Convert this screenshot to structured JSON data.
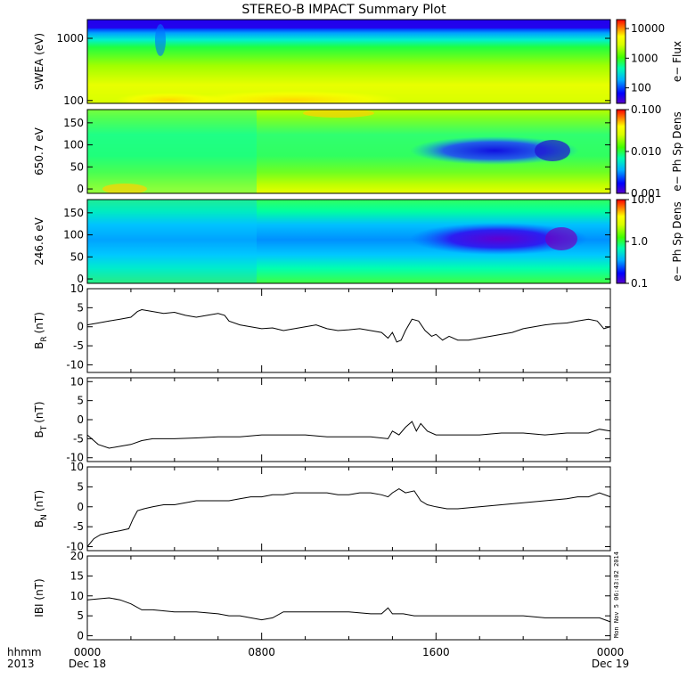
{
  "title": "STEREO-B IMPACT Summary Plot",
  "time_axis": {
    "row_label_1": "hhmm",
    "row_label_2": "2013",
    "ticks": [
      {
        "hours": 0,
        "label": "0000",
        "date": "Dec 18"
      },
      {
        "hours": 8,
        "label": "0800",
        "date": ""
      },
      {
        "hours": 16,
        "label": "1600",
        "date": ""
      },
      {
        "hours": 24,
        "label": "0000",
        "date": "Dec 19"
      }
    ]
  },
  "timestamp_text": "Mon Nov  5 06:43:02 2014",
  "chart_data": [
    {
      "type": "heatmap",
      "ylabel": "SWEA (eV)",
      "yscale": "log",
      "ylim": [
        90,
        2000
      ],
      "yticks": [
        {
          "v": 1000,
          "label": "1000"
        },
        {
          "v": 100,
          "label": "100"
        }
      ],
      "colorbar": {
        "scale": "log",
        "range": [
          30,
          20000
        ],
        "label": "e− Flux",
        "ticks": [
          {
            "v": 10000,
            "label": "10000"
          },
          {
            "v": 1000,
            "label": "1000"
          },
          {
            "v": 100,
            "label": "100"
          }
        ]
      },
      "colors": [
        "#5a00c8",
        "#0000ff",
        "#00b0ff",
        "#00ffb0",
        "#40ff00",
        "#d8ff00",
        "#ffff00",
        "#ff8000",
        "#ff0000"
      ]
    },
    {
      "type": "heatmap",
      "ylabel": "650.7 eV",
      "ylim": [
        -10,
        180
      ],
      "yticks": [
        {
          "v": 150,
          "label": "150"
        },
        {
          "v": 100,
          "label": "100"
        },
        {
          "v": 50,
          "label": "50"
        },
        {
          "v": 0,
          "label": "0"
        }
      ],
      "colorbar": {
        "scale": "log",
        "range": [
          0.001,
          0.1
        ],
        "label": "e− Ph Sp Dens",
        "ticks": [
          {
            "v": 0.1,
            "label": "0.100"
          },
          {
            "v": 0.01,
            "label": "0.010"
          },
          {
            "v": 0.001,
            "label": "0.001"
          }
        ]
      }
    },
    {
      "type": "heatmap",
      "ylabel": "246.6 eV",
      "ylim": [
        -10,
        180
      ],
      "yticks": [
        {
          "v": 150,
          "label": "150"
        },
        {
          "v": 100,
          "label": "100"
        },
        {
          "v": 50,
          "label": "50"
        },
        {
          "v": 0,
          "label": "0"
        }
      ],
      "colorbar": {
        "scale": "log",
        "range": [
          0.1,
          10
        ],
        "label": "e− Ph Sp Dens",
        "ticks": [
          {
            "v": 10,
            "label": "10.0"
          },
          {
            "v": 1,
            "label": "1.0"
          },
          {
            "v": 0.1,
            "label": "0.1"
          }
        ]
      }
    },
    {
      "type": "line",
      "ylabel_main": "B",
      "ylabel_sub": "R",
      "ylabel_unit": "(nT)",
      "ylim": [
        -12,
        10
      ],
      "yticks": [
        {
          "v": 10,
          "label": "10"
        },
        {
          "v": 5,
          "label": "5"
        },
        {
          "v": 0,
          "label": "0"
        },
        {
          "v": -5,
          "label": "-5"
        },
        {
          "v": -10,
          "label": "-10"
        }
      ],
      "series": [
        {
          "x": [
            0,
            0.5,
            1,
            1.5,
            2,
            2.3,
            2.5,
            3,
            3.5,
            4,
            4.5,
            5,
            5.5,
            6,
            6.3,
            6.5,
            7,
            7.5,
            8,
            8.5,
            9,
            9.5,
            10,
            10.5,
            11,
            11.5,
            12,
            12.5,
            13,
            13.5,
            13.8,
            14,
            14.2,
            14.4,
            14.6,
            14.9,
            15.2,
            15.5,
            15.8,
            16,
            16.3,
            16.6,
            17,
            17.5,
            18,
            18.5,
            19,
            19.5,
            20,
            20.5,
            21,
            21.5,
            22,
            22.5,
            23,
            23.4,
            23.7,
            24
          ],
          "y": [
            0.5,
            1,
            1.5,
            2,
            2.5,
            4,
            4.5,
            4,
            3.5,
            3.8,
            3,
            2.5,
            3,
            3.5,
            3,
            1.5,
            0.5,
            0,
            -0.5,
            -0.3,
            -1,
            -0.5,
            0,
            0.5,
            -0.5,
            -1,
            -0.8,
            -0.5,
            -1,
            -1.5,
            -3,
            -1.5,
            -4,
            -3.5,
            -1,
            2,
            1.5,
            -1,
            -2.5,
            -2,
            -3.5,
            -2.5,
            -3.5,
            -3.5,
            -3,
            -2.5,
            -2,
            -1.5,
            -0.5,
            0,
            0.5,
            0.8,
            1,
            1.5,
            2,
            1.5,
            -0.5,
            0
          ]
        }
      ]
    },
    {
      "type": "line",
      "ylabel_main": "B",
      "ylabel_sub": "T",
      "ylabel_unit": "(nT)",
      "ylim": [
        -11,
        11
      ],
      "yticks": [
        {
          "v": 10,
          "label": "10"
        },
        {
          "v": 5,
          "label": "5"
        },
        {
          "v": 0,
          "label": "0"
        },
        {
          "v": -5,
          "label": "-5"
        },
        {
          "v": -10,
          "label": "-10"
        }
      ],
      "series": [
        {
          "x": [
            0,
            0.2,
            0.5,
            1,
            1.5,
            2,
            2.5,
            3,
            4,
            5,
            6,
            7,
            8,
            9,
            10,
            11,
            12,
            13,
            13.8,
            14,
            14.3,
            14.6,
            14.9,
            15.1,
            15.3,
            15.6,
            16,
            17,
            18,
            19,
            20,
            21,
            22,
            23,
            23.5,
            24
          ],
          "y": [
            -4,
            -5,
            -6.5,
            -7.5,
            -7,
            -6.5,
            -5.5,
            -5,
            -5,
            -4.8,
            -4.5,
            -4.5,
            -4,
            -4,
            -4,
            -4.5,
            -4.5,
            -4.5,
            -5,
            -3,
            -4,
            -2,
            -0.5,
            -3,
            -1,
            -3,
            -4,
            -4,
            -4,
            -3.5,
            -3.5,
            -4,
            -3.5,
            -3.5,
            -2.5,
            -3
          ]
        }
      ]
    },
    {
      "type": "line",
      "ylabel_main": "B",
      "ylabel_sub": "N",
      "ylabel_unit": "(nT)",
      "ylim": [
        -11,
        10
      ],
      "yticks": [
        {
          "v": 10,
          "label": "10"
        },
        {
          "v": 5,
          "label": "5"
        },
        {
          "v": 0,
          "label": "0"
        },
        {
          "v": -5,
          "label": "-5"
        },
        {
          "v": -10,
          "label": "-10"
        }
      ],
      "series": [
        {
          "x": [
            0,
            0.3,
            0.6,
            1,
            1.5,
            1.9,
            2.1,
            2.3,
            2.6,
            3,
            3.5,
            4,
            4.5,
            5,
            5.5,
            6,
            6.5,
            7,
            7.5,
            8,
            8.5,
            9,
            9.5,
            10,
            10.5,
            11,
            11.5,
            12,
            12.5,
            13,
            13.5,
            13.8,
            14,
            14.3,
            14.6,
            15,
            15.3,
            15.6,
            16,
            16.5,
            17,
            18,
            19,
            20,
            21,
            22,
            22.5,
            23,
            23.5,
            24
          ],
          "y": [
            -10,
            -8,
            -7,
            -6.5,
            -6,
            -5.5,
            -3,
            -1,
            -0.5,
            0,
            0.5,
            0.5,
            1,
            1.5,
            1.5,
            1.5,
            1.5,
            2,
            2.5,
            2.5,
            3,
            3,
            3.5,
            3.5,
            3.5,
            3.5,
            3,
            3,
            3.5,
            3.5,
            3,
            2.5,
            3.5,
            4.5,
            3.5,
            4,
            1.5,
            0.5,
            0,
            -0.5,
            -0.5,
            0,
            0.5,
            1,
            1.5,
            2,
            2.5,
            2.5,
            3.5,
            2.5
          ]
        }
      ]
    },
    {
      "type": "line",
      "ylabel": "IBI (nT)",
      "ylim": [
        -1,
        20
      ],
      "yticks": [
        {
          "v": 20,
          "label": "20"
        },
        {
          "v": 15,
          "label": "15"
        },
        {
          "v": 10,
          "label": "10"
        },
        {
          "v": 5,
          "label": "5"
        },
        {
          "v": 0,
          "label": "0"
        }
      ],
      "series": [
        {
          "x": [
            0,
            1,
            1.5,
            2,
            2.5,
            3,
            4,
            5,
            6,
            6.5,
            7,
            7.5,
            8,
            8.5,
            9,
            10,
            11,
            12,
            13,
            13.5,
            13.8,
            14,
            14.5,
            15,
            16,
            17,
            18,
            19,
            20,
            21,
            22,
            23,
            23.5,
            24
          ],
          "y": [
            9,
            9.5,
            9,
            8,
            6.5,
            6.5,
            6,
            6,
            5.5,
            5,
            5,
            4.5,
            4,
            4.5,
            6,
            6,
            6,
            6,
            5.5,
            5.5,
            7,
            5.5,
            5.5,
            5,
            5,
            5,
            5,
            5,
            5,
            4.5,
            4.5,
            4.5,
            4.5,
            3.5
          ]
        }
      ]
    }
  ]
}
